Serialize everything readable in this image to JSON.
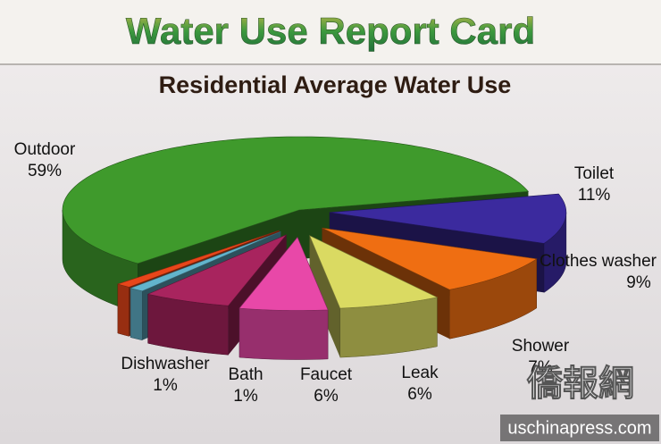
{
  "chart_data": {
    "type": "pie",
    "title": "Water Use Report Card",
    "subtitle": "Residential Average Water Use",
    "categories": [
      "Outdoor",
      "Toilet",
      "Clothes washer",
      "Shower",
      "Leak",
      "Faucet",
      "Bath",
      "Dishwasher"
    ],
    "values": [
      59,
      11,
      9,
      7,
      6,
      6,
      1,
      1
    ],
    "value_labels": [
      "59%",
      "11%",
      "9%",
      "7%",
      "6%",
      "6%",
      "1%",
      "1%"
    ],
    "colors": [
      "#3f9a2c",
      "#3b2a9e",
      "#ef6e12",
      "#dada62",
      "#e848a8",
      "#a8245e",
      "#62b4cc",
      "#e8461a"
    ]
  },
  "watermark": {
    "text": "僑報網",
    "site": "uschinapress.com"
  }
}
